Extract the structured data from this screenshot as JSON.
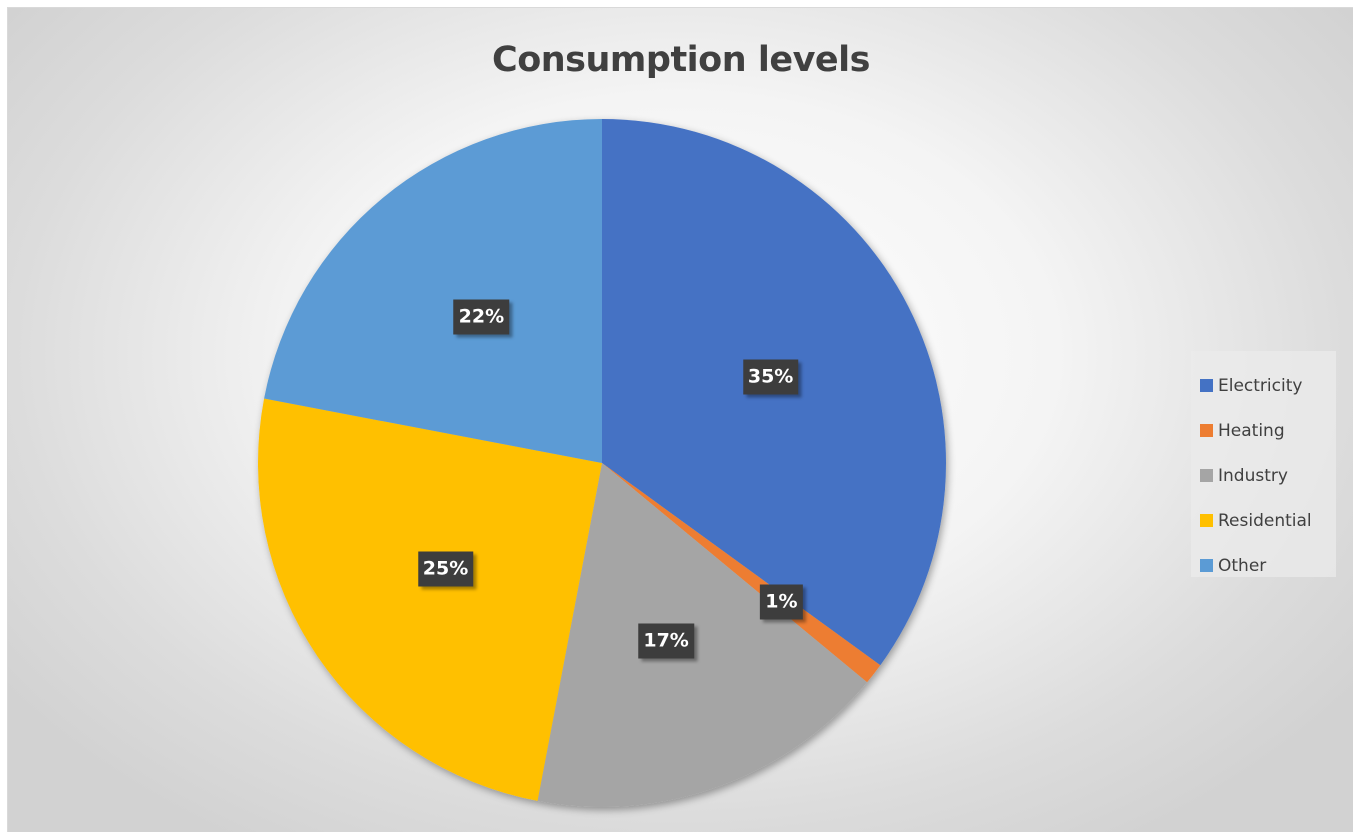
{
  "chart_data": {
    "type": "pie",
    "title": "Consumption levels",
    "categories": [
      "Electricity",
      "Heating",
      "Industry",
      "Residential",
      "Other"
    ],
    "values": [
      35,
      1,
      17,
      25,
      22
    ],
    "labels": [
      "35%",
      "1%",
      "17%",
      "25%",
      "22%"
    ],
    "colors": [
      "#4472C4",
      "#ED7D31",
      "#A5A5A5",
      "#FFC000",
      "#5B9BD5"
    ],
    "start_angle_deg": 0,
    "direction": "clockwise",
    "legend_position": "right"
  },
  "legend": {
    "items": [
      {
        "label": "Electricity",
        "color": "#4472C4"
      },
      {
        "label": "Heating",
        "color": "#ED7D31"
      },
      {
        "label": "Industry",
        "color": "#A5A5A5"
      },
      {
        "label": "Residential",
        "color": "#FFC000"
      },
      {
        "label": "Other",
        "color": "#5B9BD5"
      }
    ]
  }
}
